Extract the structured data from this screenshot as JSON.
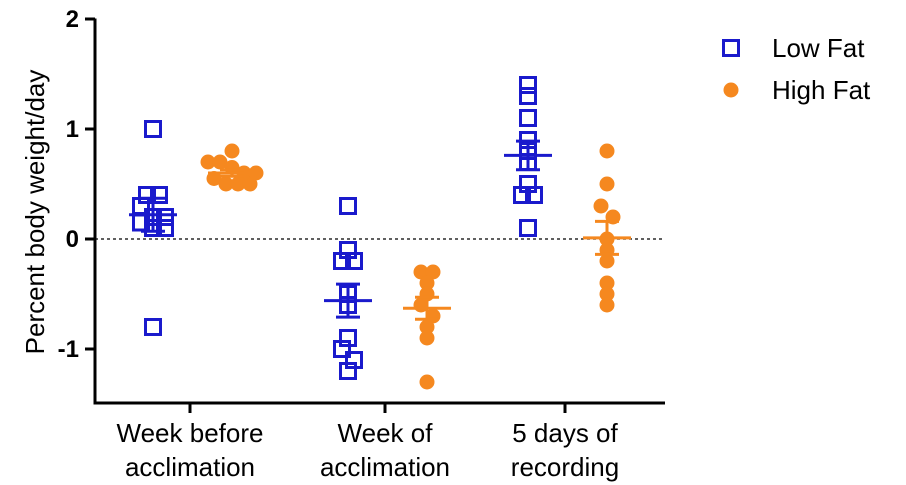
{
  "chart_data": {
    "type": "scatter",
    "title": "",
    "xlabel": "",
    "ylabel": "Percent body weight/day",
    "ylim": [
      -1.5,
      2
    ],
    "yticks": [
      {
        "value": 2,
        "label": "2"
      },
      {
        "value": 1,
        "label": "1"
      },
      {
        "value": 0,
        "label": "0"
      },
      {
        "value": -1,
        "label": "-1"
      }
    ],
    "reference_line": {
      "y": 0,
      "style": "dotted"
    },
    "categories": [
      {
        "line1": "Week before",
        "line2": "acclimation"
      },
      {
        "line1": "Week of",
        "line2": "acclimation"
      },
      {
        "line1": "5 days of",
        "line2": "recording"
      }
    ],
    "legend_position": "top-right",
    "series": [
      {
        "name": "Low Fat",
        "color": "#1a1acc",
        "marker": "open-square",
        "groups": [
          {
            "values": [
              1.0,
              0.4,
              0.4,
              0.3,
              0.2,
              0.2,
              0.15,
              0.1,
              0.1,
              -0.8
            ],
            "mean": 0.22,
            "sem": 0.15
          },
          {
            "values": [
              0.3,
              -0.1,
              -0.2,
              -0.2,
              -0.5,
              -0.6,
              -0.9,
              -1.0,
              -1.1,
              -1.2
            ],
            "mean": -0.56,
            "sem": 0.15
          },
          {
            "values": [
              1.4,
              1.3,
              1.1,
              0.9,
              0.8,
              0.7,
              0.5,
              0.4,
              0.4,
              0.1
            ],
            "mean": 0.76,
            "sem": 0.13
          }
        ]
      },
      {
        "name": "High Fat",
        "color": "#f5881f",
        "marker": "filled-circle",
        "groups": [
          {
            "values": [
              0.8,
              0.7,
              0.7,
              0.65,
              0.6,
              0.6,
              0.55,
              0.5,
              0.5,
              0.5
            ],
            "mean": 0.6,
            "sem": 0.03
          },
          {
            "values": [
              -0.3,
              -0.3,
              -0.4,
              -0.5,
              -0.6,
              -0.7,
              -0.8,
              -0.9,
              -1.3
            ],
            "mean": -0.63,
            "sem": 0.1
          },
          {
            "values": [
              0.8,
              0.5,
              0.3,
              0.2,
              0.0,
              -0.1,
              -0.2,
              -0.4,
              -0.5,
              -0.6
            ],
            "mean": 0.01,
            "sem": 0.15
          }
        ]
      }
    ]
  }
}
